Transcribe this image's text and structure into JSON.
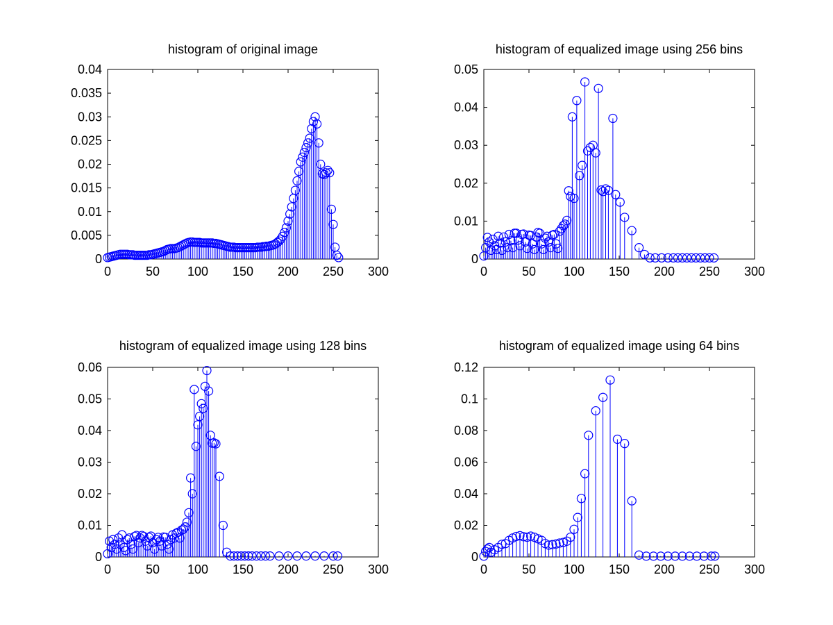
{
  "figure": {
    "background": "#ffffff",
    "axes_color": "#000000",
    "stem_color": "#0000ff"
  },
  "chart_data": [
    {
      "type": "stem",
      "title": "histogram of original image",
      "xlabel": "",
      "ylabel": "",
      "xlim": [
        0,
        300
      ],
      "ylim": [
        0,
        0.04
      ],
      "xticks": [
        0,
        50,
        100,
        150,
        200,
        250,
        300
      ],
      "yticks": [
        0,
        0.005,
        0.01,
        0.015,
        0.02,
        0.025,
        0.03,
        0.035,
        0.04
      ],
      "xtick_labels": [
        "0",
        "50",
        "100",
        "150",
        "200",
        "250",
        "300"
      ],
      "ytick_labels": [
        "0",
        "0.005",
        "0.01",
        "0.015",
        "0.02",
        "0.025",
        "0.03",
        "0.035",
        "0.04"
      ],
      "grid": false,
      "marker": "circle",
      "color": "#0000ff",
      "x": [
        0,
        2,
        4,
        6,
        8,
        10,
        12,
        14,
        16,
        18,
        20,
        22,
        24,
        26,
        28,
        30,
        32,
        34,
        36,
        38,
        40,
        42,
        44,
        46,
        48,
        50,
        52,
        54,
        56,
        58,
        60,
        62,
        64,
        66,
        68,
        70,
        72,
        74,
        76,
        78,
        80,
        82,
        84,
        86,
        88,
        90,
        92,
        94,
        96,
        98,
        100,
        102,
        104,
        106,
        108,
        110,
        112,
        114,
        116,
        118,
        120,
        122,
        124,
        126,
        128,
        130,
        132,
        134,
        136,
        138,
        140,
        142,
        144,
        146,
        148,
        150,
        152,
        154,
        156,
        158,
        160,
        162,
        164,
        166,
        168,
        170,
        172,
        174,
        176,
        178,
        180,
        182,
        184,
        186,
        188,
        190,
        192,
        194,
        196,
        198,
        200,
        202,
        204,
        206,
        208,
        210,
        212,
        214,
        216,
        218,
        220,
        222,
        224,
        226,
        228,
        230,
        232,
        234,
        236,
        238,
        240,
        242,
        244,
        246,
        248,
        250,
        252,
        254,
        256
      ],
      "y": [
        0.0003,
        0.0004,
        0.0005,
        0.0006,
        0.0007,
        0.0008,
        0.0009,
        0.001,
        0.001,
        0.001,
        0.001,
        0.001,
        0.0009,
        0.0009,
        0.0009,
        0.0008,
        0.0008,
        0.0008,
        0.0008,
        0.0008,
        0.0008,
        0.0008,
        0.0008,
        0.0009,
        0.0009,
        0.001,
        0.0011,
        0.0012,
        0.0013,
        0.0014,
        0.0015,
        0.0016,
        0.0018,
        0.002,
        0.0021,
        0.0022,
        0.0022,
        0.0022,
        0.0023,
        0.0024,
        0.0026,
        0.0028,
        0.003,
        0.0032,
        0.0034,
        0.0035,
        0.0036,
        0.0036,
        0.0035,
        0.0035,
        0.0035,
        0.0035,
        0.0034,
        0.0034,
        0.0034,
        0.0034,
        0.0034,
        0.0034,
        0.0034,
        0.0033,
        0.0033,
        0.0032,
        0.0031,
        0.003,
        0.0029,
        0.0028,
        0.0027,
        0.0026,
        0.0025,
        0.0025,
        0.0025,
        0.0024,
        0.0024,
        0.0024,
        0.0024,
        0.0024,
        0.0024,
        0.0024,
        0.0024,
        0.0024,
        0.0024,
        0.0024,
        0.0024,
        0.0025,
        0.0025,
        0.0025,
        0.0026,
        0.0026,
        0.0027,
        0.0027,
        0.0028,
        0.0029,
        0.003,
        0.0032,
        0.0035,
        0.0038,
        0.0042,
        0.0048,
        0.0056,
        0.0066,
        0.008,
        0.0095,
        0.011,
        0.0128,
        0.0145,
        0.0165,
        0.0185,
        0.0205,
        0.0215,
        0.0225,
        0.0235,
        0.0245,
        0.0255,
        0.0275,
        0.029,
        0.03,
        0.0285,
        0.0245,
        0.02,
        0.018,
        0.0178,
        0.0182,
        0.0187,
        0.0182,
        0.0105,
        0.0073,
        0.0025,
        0.0008,
        0.0003
      ]
    },
    {
      "type": "stem",
      "title": "histogram of equalized image using 256 bins",
      "xlabel": "",
      "ylabel": "",
      "xlim": [
        0,
        300
      ],
      "ylim": [
        0,
        0.05
      ],
      "xticks": [
        0,
        50,
        100,
        150,
        200,
        250,
        300
      ],
      "yticks": [
        0,
        0.01,
        0.02,
        0.03,
        0.04,
        0.05
      ],
      "xtick_labels": [
        "0",
        "50",
        "100",
        "150",
        "200",
        "250",
        "300"
      ],
      "ytick_labels": [
        "0",
        "0.01",
        "0.02",
        "0.03",
        "0.04",
        "0.05"
      ],
      "grid": false,
      "marker": "circle",
      "color": "#0000ff",
      "x": [
        0,
        2,
        4,
        6,
        8,
        10,
        12,
        14,
        16,
        18,
        20,
        22,
        24,
        26,
        28,
        30,
        32,
        34,
        36,
        38,
        40,
        42,
        44,
        46,
        48,
        50,
        52,
        54,
        56,
        58,
        60,
        62,
        64,
        66,
        68,
        70,
        72,
        74,
        76,
        78,
        80,
        82,
        84,
        86,
        88,
        90,
        92,
        94,
        96,
        98,
        100,
        103,
        106,
        109,
        112,
        115,
        118,
        121,
        124,
        127,
        130,
        132,
        135,
        138,
        143,
        146,
        151,
        156,
        164,
        172,
        178,
        184,
        190,
        197,
        204,
        210,
        215,
        220,
        225,
        230,
        235,
        240,
        245,
        250,
        255
      ],
      "y": [
        0.0008,
        0.003,
        0.0057,
        0.0045,
        0.0023,
        0.0052,
        0.0035,
        0.0025,
        0.006,
        0.0042,
        0.0023,
        0.0058,
        0.0045,
        0.003,
        0.0065,
        0.0048,
        0.003,
        0.0068,
        0.0068,
        0.005,
        0.0035,
        0.0065,
        0.0066,
        0.0045,
        0.0028,
        0.0063,
        0.0062,
        0.004,
        0.0025,
        0.0058,
        0.007,
        0.0068,
        0.004,
        0.0025,
        0.0055,
        0.006,
        0.0045,
        0.003,
        0.0063,
        0.0065,
        0.004,
        0.0028,
        0.0073,
        0.008,
        0.0088,
        0.0092,
        0.0102,
        0.018,
        0.0165,
        0.0375,
        0.016,
        0.0418,
        0.022,
        0.0247,
        0.0467,
        0.0285,
        0.0294,
        0.03,
        0.028,
        0.045,
        0.0182,
        0.0178,
        0.0185,
        0.0181,
        0.0371,
        0.017,
        0.015,
        0.011,
        0.0075,
        0.003,
        0.0012,
        0.0003,
        0.0003,
        0.0003,
        0.0003,
        0.0003,
        0.0003,
        0.0003,
        0.0003,
        0.0003,
        0.0003,
        0.0003,
        0.0003,
        0.0003,
        0.0003
      ],
      "y_override": {
        "x": [
          100,
          103,
          106,
          109,
          112,
          115,
          118,
          121,
          124,
          127,
          130,
          132,
          135,
          138,
          143,
          146,
          151,
          156,
          164,
          172,
          178,
          184,
          190,
          197,
          204
        ],
        "y": [
          0.0375,
          0.0165,
          0.0418,
          0.022,
          0.0247,
          0.0467,
          0.0285,
          0.0294,
          0.03,
          0.028,
          0.045,
          0.0182,
          0.0178,
          0.0185,
          0.0181,
          0.0371,
          0.017,
          0.015,
          0.011,
          0.0075,
          0.003,
          0.0012,
          0.0003,
          0.0003,
          0.0003
        ]
      }
    },
    {
      "type": "stem",
      "title": "histogram of equalized image using 128 bins",
      "xlabel": "",
      "ylabel": "",
      "xlim": [
        0,
        300
      ],
      "ylim": [
        0,
        0.06
      ],
      "xticks": [
        0,
        50,
        100,
        150,
        200,
        250,
        300
      ],
      "yticks": [
        0,
        0.01,
        0.02,
        0.03,
        0.04,
        0.05,
        0.06
      ],
      "xtick_labels": [
        "0",
        "50",
        "100",
        "150",
        "200",
        "250",
        "300"
      ],
      "ytick_labels": [
        "0",
        "0.01",
        "0.02",
        "0.03",
        "0.04",
        "0.05",
        "0.06"
      ],
      "grid": false,
      "marker": "circle",
      "color": "#0000ff",
      "x": [
        0,
        2,
        4,
        6,
        8,
        10,
        12,
        14,
        16,
        18,
        20,
        22,
        24,
        26,
        28,
        30,
        32,
        34,
        36,
        38,
        40,
        42,
        44,
        46,
        48,
        50,
        52,
        54,
        56,
        58,
        60,
        62,
        64,
        66,
        68,
        70,
        72,
        74,
        76,
        78,
        80,
        82,
        84,
        86,
        88,
        90,
        92,
        94,
        96,
        98,
        100,
        102,
        104,
        106,
        108,
        110,
        112,
        114,
        116,
        118,
        120,
        124,
        128,
        132,
        136,
        140,
        144,
        148,
        152,
        156,
        160,
        165,
        170,
        175,
        180,
        190,
        200,
        210,
        220,
        230,
        240,
        250,
        255
      ],
      "y": [
        0.001,
        0.005,
        0.003,
        0.0055,
        0.004,
        0.0025,
        0.006,
        0.004,
        0.007,
        0.003,
        0.002,
        0.0055,
        0.006,
        0.004,
        0.0025,
        0.0065,
        0.0068,
        0.0045,
        0.006,
        0.0068,
        0.0065,
        0.005,
        0.0035,
        0.0062,
        0.0066,
        0.0045,
        0.0025,
        0.0055,
        0.0062,
        0.005,
        0.0035,
        0.0063,
        0.0062,
        0.004,
        0.0025,
        0.0055,
        0.007,
        0.006,
        0.0075,
        0.0078,
        0.006,
        0.0085,
        0.0088,
        0.0095,
        0.011,
        0.014,
        0.025,
        0.02,
        0.053,
        0.035,
        0.0418,
        0.0445,
        0.0485,
        0.047,
        0.054,
        0.059,
        0.0525,
        0.0385,
        0.036,
        0.0361,
        0.0358,
        0.0255,
        0.01,
        0.0015,
        0.0003,
        0.0003,
        0.0003,
        0.0003,
        0.0003,
        0.0003,
        0.0003,
        0.0003,
        0.0003,
        0.0003,
        0.0003,
        0.0003,
        0.0003,
        0.0003,
        0.0003,
        0.0003,
        0.0003,
        0.0003,
        0.0003
      ],
      "y_override": {
        "x": [
          0,
          2,
          4,
          6,
          8,
          10,
          12,
          14,
          16,
          18,
          20,
          22,
          24,
          26,
          28,
          30,
          32,
          34,
          36,
          38,
          40,
          42,
          44,
          46,
          48,
          50,
          52,
          54,
          56,
          58,
          60,
          62,
          64,
          66,
          68,
          70,
          72,
          74,
          76,
          78,
          80,
          82,
          84,
          86,
          88,
          90,
          93,
          96,
          100,
          102,
          104,
          106,
          108,
          110,
          112,
          116,
          120,
          124,
          128,
          132,
          136,
          140,
          144,
          150,
          156,
          162,
          168,
          174,
          180,
          186,
          192,
          198,
          204,
          210,
          215,
          220,
          225,
          230,
          235,
          240,
          245,
          250,
          255
        ],
        "y": [
          0.001,
          0.005,
          0.003,
          0.0055,
          0.004,
          0.0025,
          0.006,
          0.004,
          0.007,
          0.003,
          0.002,
          0.0055,
          0.006,
          0.004,
          0.0025,
          0.0065,
          0.0068,
          0.0045,
          0.006,
          0.0068,
          0.0065,
          0.005,
          0.0035,
          0.0062,
          0.0066,
          0.0045,
          0.0025,
          0.0055,
          0.0062,
          0.005,
          0.0035,
          0.0063,
          0.0062,
          0.004,
          0.0025,
          0.0055,
          0.007,
          0.006,
          0.0075,
          0.0078,
          0.006,
          0.0085,
          0.0088,
          0.0095,
          0.011,
          0.0145,
          0.025,
          0.0205,
          0.053,
          0.035,
          0.0418,
          0.0445,
          0.0485,
          0.047,
          0.054,
          0.059,
          0.0525,
          0.0385,
          0.036,
          0.0361,
          0.0358,
          0.0255,
          0.01,
          0.0015,
          0.0003,
          0.0003,
          0.0003,
          0.0003,
          0.0003,
          0.0003,
          0.0003,
          0.0003,
          0.0003,
          0.0003,
          0.0003,
          0.0003,
          0.0003,
          0.0003,
          0.0003,
          0.0003,
          0.0003,
          0.0003,
          0.0003
        ]
      }
    },
    {
      "type": "stem",
      "title": "histogram of equalized image using 64 bins",
      "xlabel": "",
      "ylabel": "",
      "xlim": [
        0,
        300
      ],
      "ylim": [
        0,
        0.12
      ],
      "xticks": [
        0,
        50,
        100,
        150,
        200,
        250,
        300
      ],
      "yticks": [
        0,
        0.02,
        0.04,
        0.06,
        0.08,
        0.1,
        0.12
      ],
      "xtick_labels": [
        "0",
        "50",
        "100",
        "150",
        "200",
        "250",
        "300"
      ],
      "ytick_labels": [
        "0",
        "0.02",
        "0.04",
        "0.06",
        "0.08",
        "0.1",
        "0.12"
      ],
      "grid": false,
      "marker": "circle",
      "color": "#0000ff",
      "x": [
        0,
        2,
        4,
        6,
        8,
        12,
        16,
        20,
        24,
        28,
        32,
        36,
        40,
        44,
        48,
        52,
        56,
        60,
        64,
        68,
        72,
        76,
        80,
        84,
        88,
        92,
        96,
        100,
        104,
        108,
        112,
        116,
        124,
        132,
        140,
        148,
        156,
        164,
        172,
        180,
        188,
        196,
        204,
        212,
        220,
        228,
        236,
        244,
        252,
        256
      ],
      "y": [
        0.0005,
        0.0035,
        0.005,
        0.006,
        0.003,
        0.0045,
        0.006,
        0.008,
        0.0085,
        0.0105,
        0.012,
        0.013,
        0.0135,
        0.0128,
        0.0125,
        0.0132,
        0.0125,
        0.0115,
        0.0105,
        0.0085,
        0.0075,
        0.0078,
        0.0082,
        0.0088,
        0.0092,
        0.01,
        0.0125,
        0.0175,
        0.025,
        0.037,
        0.0527,
        0.077,
        0.0925,
        0.101,
        0.112,
        0.0745,
        0.0718,
        0.0355,
        0.0012,
        0.0005,
        0.0005,
        0.0005,
        0.0005,
        0.0005,
        0.0005,
        0.0005,
        0.0005,
        0.0005,
        0.0005,
        0.0005
      ],
      "y_override": {
        "x": [
          0,
          2,
          4,
          6,
          8,
          12,
          16,
          20,
          24,
          28,
          32,
          36,
          40,
          44,
          48,
          52,
          56,
          60,
          64,
          68,
          72,
          76,
          80,
          84,
          88,
          92,
          96,
          100,
          104,
          108,
          112,
          116,
          124,
          132,
          148,
          156,
          168,
          180,
          190,
          200,
          210,
          220,
          228,
          236,
          244,
          252,
          256
        ],
        "y": [
          0.0005,
          0.0035,
          0.005,
          0.006,
          0.003,
          0.0045,
          0.006,
          0.008,
          0.0085,
          0.0105,
          0.012,
          0.013,
          0.0135,
          0.0128,
          0.0125,
          0.0132,
          0.0125,
          0.0115,
          0.0105,
          0.0085,
          0.0075,
          0.0078,
          0.0082,
          0.0088,
          0.0092,
          0.01,
          0.0125,
          0.0175,
          0.025,
          0.037,
          0.0527,
          0.077,
          0.0925,
          0.101,
          0.112,
          0.0745,
          0.0718,
          0.0355,
          0.0012,
          0.0005,
          0.0005,
          0.0005,
          0.0005,
          0.0005,
          0.0005,
          0.0005,
          0.0005
        ]
      }
    }
  ]
}
